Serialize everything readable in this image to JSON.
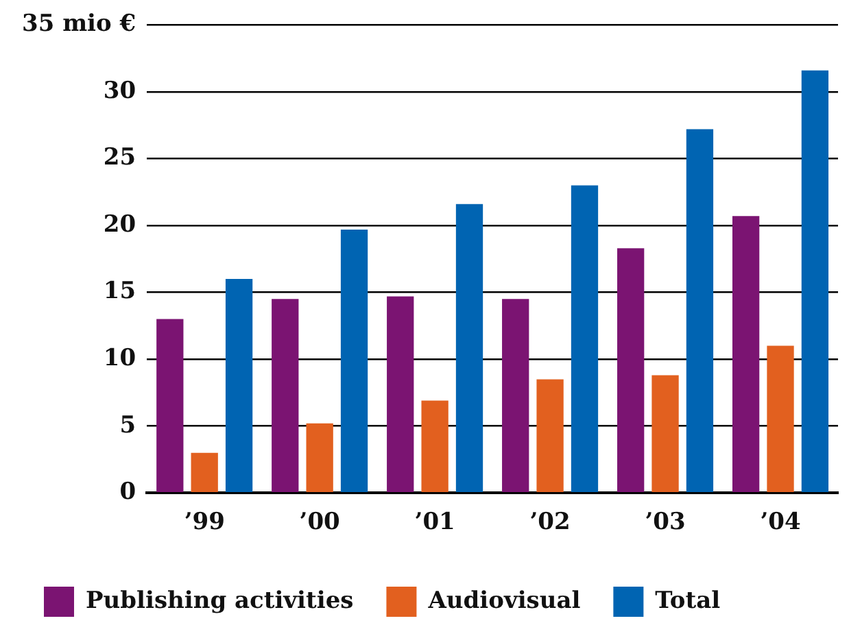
{
  "chart_data": {
    "type": "bar",
    "categories": [
      "’99",
      "’00",
      "’01",
      "’02",
      "’03",
      "’04"
    ],
    "series": [
      {
        "name": "Publishing activities",
        "color": "#7b1472",
        "values": [
          13,
          14.5,
          14.7,
          14.5,
          18.3,
          20.7
        ]
      },
      {
        "name": "Audiovisual",
        "color": "#e2601f",
        "values": [
          3,
          5.2,
          6.9,
          8.5,
          8.8,
          11
        ]
      },
      {
        "name": "Total",
        "color": "#0064b2",
        "values": [
          16,
          19.7,
          21.6,
          23,
          27.2,
          31.6
        ]
      }
    ],
    "ylim": [
      0,
      35
    ],
    "yticks": [
      0,
      5,
      10,
      15,
      20,
      25,
      30,
      {
        "value": 35,
        "label": "35 mio €"
      }
    ],
    "grid": "y",
    "legend": "bottom"
  }
}
